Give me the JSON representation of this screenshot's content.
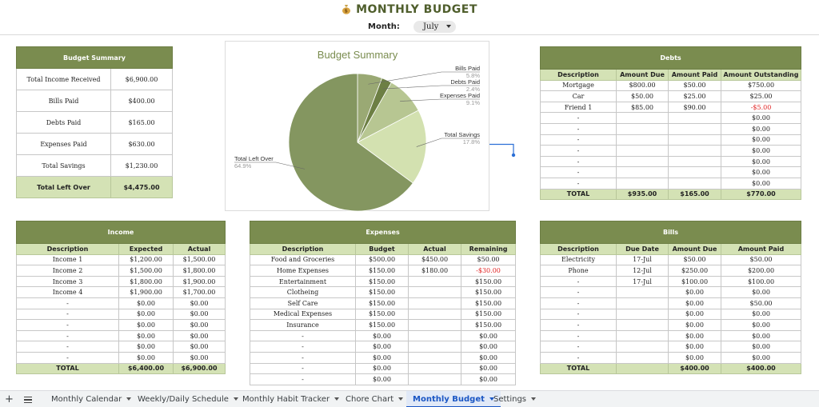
{
  "header": {
    "title": "MONTHLY BUDGET",
    "month_label": "Month:",
    "month_value": "July"
  },
  "summary": {
    "title": "Budget Summary",
    "rows": [
      {
        "label": "Total Income Received",
        "value": "$6,900.00"
      },
      {
        "label": "Bills Paid",
        "value": "$400.00"
      },
      {
        "label": "Debts Paid",
        "value": "$165.00"
      },
      {
        "label": "Expenses Paid",
        "value": "$630.00"
      },
      {
        "label": "Total Savings",
        "value": "$1,230.00"
      }
    ],
    "total": {
      "label": "Total Left Over",
      "value": "$4,475.00"
    }
  },
  "chart_data": {
    "type": "pie",
    "title": "Budget Summary",
    "slices": [
      {
        "label": "Bills Paid",
        "percent_label": "5.8%",
        "value": 5.8,
        "color": "#9aa974"
      },
      {
        "label": "Debts Paid",
        "percent_label": "2.4%",
        "value": 2.4,
        "color": "#6d7f44"
      },
      {
        "label": "Expenses Paid",
        "percent_label": "9.1%",
        "value": 9.1,
        "color": "#b7c692"
      },
      {
        "label": "Total Savings",
        "percent_label": "17.8%",
        "value": 17.8,
        "color": "#d3e1b0"
      },
      {
        "label": "Total Left Over",
        "percent_label": "64.9%",
        "value": 64.9,
        "color": "#849660"
      }
    ],
    "title_color": "#7a8c4f"
  },
  "debts": {
    "title": "Debts",
    "columns": [
      "Description",
      "Amount Due",
      "Amount Paid",
      "Amount Outstanding"
    ],
    "rows": [
      [
        "Mortgage",
        "$800.00",
        "$50.00",
        "$750.00"
      ],
      [
        "Car",
        "$50.00",
        "$25.00",
        "$25.00"
      ],
      [
        "Friend 1",
        "$85.00",
        "$90.00",
        "-$5.00"
      ],
      [
        "-",
        "",
        "",
        "$0.00"
      ],
      [
        "-",
        "",
        "",
        "$0.00"
      ],
      [
        "-",
        "",
        "",
        "$0.00"
      ],
      [
        "-",
        "",
        "",
        "$0.00"
      ],
      [
        "-",
        "",
        "",
        "$0.00"
      ],
      [
        "-",
        "",
        "",
        "$0.00"
      ],
      [
        "-",
        "",
        "",
        "$0.00"
      ]
    ],
    "total": [
      "TOTAL",
      "$935.00",
      "$165.00",
      "$770.00"
    ]
  },
  "income": {
    "title": "Income",
    "columns": [
      "Description",
      "Expected",
      "Actual"
    ],
    "rows": [
      [
        "Income 1",
        "$1,200.00",
        "$1,500.00"
      ],
      [
        "Income 2",
        "$1,500.00",
        "$1,800.00"
      ],
      [
        "Income 3",
        "$1,800.00",
        "$1,900.00"
      ],
      [
        "Income 4",
        "$1,900.00",
        "$1,700.00"
      ],
      [
        "-",
        "$0.00",
        "$0.00"
      ],
      [
        "-",
        "$0.00",
        "$0.00"
      ],
      [
        "-",
        "$0.00",
        "$0.00"
      ],
      [
        "-",
        "$0.00",
        "$0.00"
      ],
      [
        "-",
        "$0.00",
        "$0.00"
      ],
      [
        "-",
        "$0.00",
        "$0.00"
      ]
    ],
    "total": [
      "TOTAL",
      "$6,400.00",
      "$6,900.00"
    ]
  },
  "expenses": {
    "title": "Expenses",
    "columns": [
      "Description",
      "Budget",
      "Actual",
      "Remaining"
    ],
    "rows": [
      [
        "Food and Groceries",
        "$500.00",
        "$450.00",
        "$50.00"
      ],
      [
        "Home Expenses",
        "$150.00",
        "$180.00",
        "-$30.00"
      ],
      [
        "Entertainment",
        "$150.00",
        "",
        "$150.00"
      ],
      [
        "Clotheing",
        "$150.00",
        "",
        "$150.00"
      ],
      [
        "Self Care",
        "$150.00",
        "",
        "$150.00"
      ],
      [
        "Medical Expenses",
        "$150.00",
        "",
        "$150.00"
      ],
      [
        "Insurance",
        "$150.00",
        "",
        "$150.00"
      ],
      [
        "-",
        "$0.00",
        "",
        "$0.00"
      ],
      [
        "-",
        "$0.00",
        "",
        "$0.00"
      ],
      [
        "-",
        "$0.00",
        "",
        "$0.00"
      ],
      [
        "-",
        "$0.00",
        "",
        "$0.00"
      ],
      [
        "-",
        "$0.00",
        "",
        "$0.00"
      ]
    ]
  },
  "bills": {
    "title": "Bills",
    "columns": [
      "Description",
      "Due Date",
      "Amount Due",
      "Amount Paid"
    ],
    "rows": [
      [
        "Electricity",
        "17-Jul",
        "$50.00",
        "$50.00"
      ],
      [
        "Phone",
        "12-Jul",
        "$250.00",
        "$200.00"
      ],
      [
        "-",
        "17-Jul",
        "$100.00",
        "$100.00"
      ],
      [
        "-",
        "",
        "$0.00",
        "$0.00"
      ],
      [
        "-",
        "",
        "$0.00",
        "$50.00"
      ],
      [
        "-",
        "",
        "$0.00",
        "$0.00"
      ],
      [
        "-",
        "",
        "$0.00",
        "$0.00"
      ],
      [
        "-",
        "",
        "$0.00",
        "$0.00"
      ],
      [
        "-",
        "",
        "$0.00",
        "$0.00"
      ],
      [
        "-",
        "",
        "$0.00",
        "$0.00"
      ]
    ],
    "total": [
      "TOTAL",
      "",
      "$400.00",
      "$400.00"
    ]
  },
  "tabs": [
    {
      "label": "Monthly Calendar",
      "active": false
    },
    {
      "label": "Weekly/Daily Schedule",
      "active": false
    },
    {
      "label": "Monthly Habit Tracker",
      "active": false
    },
    {
      "label": "Chore Chart",
      "active": false
    },
    {
      "label": "Monthly Budget",
      "active": true
    },
    {
      "label": "Settings",
      "active": false
    }
  ],
  "colors": {
    "accent": "#7a8c4f",
    "header_fill": "#d4e2b5",
    "negative": "#e02020",
    "active_tab": "#1a56c4"
  },
  "icons": {
    "title_icon": "money-bag-icon",
    "add_sheet": "plus-icon",
    "all_sheets": "menu-icon"
  }
}
